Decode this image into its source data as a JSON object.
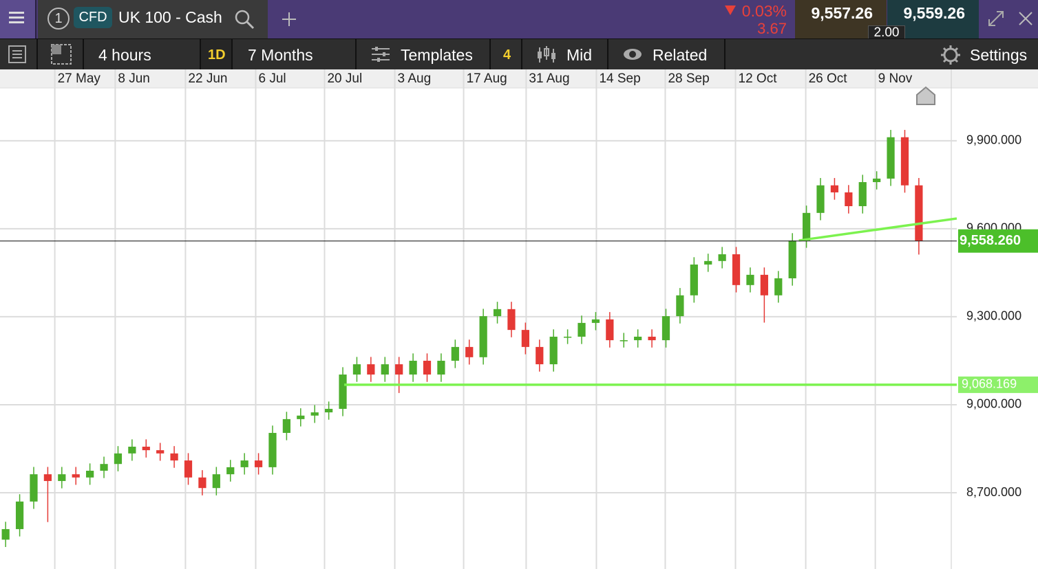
{
  "header": {
    "watchlist_number": "1",
    "instrument_type": "CFD",
    "instrument": "UK 100 - Cash",
    "change_percent": "0.03%",
    "change": "3.67",
    "sell_price": "9,557.26",
    "buy_price": "9,559.26",
    "spread": "2.00"
  },
  "toolbar": {
    "interval": "4 hours",
    "interval_short": "1D",
    "range": "7 Months",
    "templates": "Templates",
    "indicator_count": "4",
    "price_type": "Mid",
    "related": "Related",
    "settings": "Settings"
  },
  "chart_data": {
    "type": "candlestick",
    "open": [
      8540,
      8576,
      8670,
      8763,
      8740,
      8763,
      8752,
      8775,
      8798,
      8834,
      8857,
      8845,
      8834,
      8810,
      8752,
      8716,
      8763,
      8787,
      8810,
      8787,
      8904,
      8951,
      8963,
      8974,
      8986,
      9103,
      9138,
      9103,
      9138,
      9103,
      9150,
      9103,
      9150,
      9197,
      9162,
      9302,
      9326,
      9255,
      9197,
      9138,
      9232,
      9232,
      9279,
      9291,
      9220,
      9220,
      9232,
      9220,
      9302,
      9373,
      9478,
      9490,
      9513,
      9408,
      9443,
      9373,
      9431,
      9560,
      9654,
      9748,
      9724,
      9677,
      9759,
      9771,
      9912,
      9748
    ],
    "high": [
      8601,
      8695,
      8788,
      8788,
      8788,
      8788,
      8800,
      8823,
      8859,
      8882,
      8882,
      8870,
      8859,
      8835,
      8777,
      8788,
      8812,
      8835,
      8835,
      8929,
      8976,
      8988,
      8999,
      9011,
      9128,
      9163,
      9163,
      9163,
      9163,
      9175,
      9175,
      9175,
      9222,
      9222,
      9327,
      9351,
      9351,
      9280,
      9222,
      9257,
      9257,
      9304,
      9316,
      9316,
      9245,
      9257,
      9257,
      9327,
      9398,
      9503,
      9515,
      9538,
      9538,
      9468,
      9468,
      9456,
      9585,
      9679,
      9773,
      9773,
      9749,
      9784,
      9796,
      9937,
      9937,
      9773
    ],
    "low": [
      8515,
      8551,
      8645,
      8600,
      8715,
      8727,
      8727,
      8750,
      8773,
      8809,
      8820,
      8809,
      8785,
      8727,
      8691,
      8691,
      8738,
      8762,
      8762,
      8762,
      8879,
      8926,
      8938,
      8949,
      8961,
      9078,
      9078,
      9078,
      9040,
      9078,
      9078,
      9078,
      9125,
      9137,
      9137,
      9277,
      9230,
      9172,
      9113,
      9113,
      9207,
      9207,
      9254,
      9195,
      9195,
      9195,
      9195,
      9195,
      9277,
      9348,
      9453,
      9465,
      9383,
      9383,
      9280,
      9348,
      9406,
      9535,
      9629,
      9699,
      9652,
      9652,
      9734,
      9746,
      9723,
      9512
    ],
    "close": [
      8576,
      8670,
      8763,
      8740,
      8763,
      8752,
      8775,
      8798,
      8834,
      8857,
      8845,
      8834,
      8810,
      8752,
      8716,
      8763,
      8787,
      8810,
      8787,
      8904,
      8951,
      8963,
      8974,
      8986,
      9103,
      9138,
      9103,
      9138,
      9103,
      9150,
      9103,
      9150,
      9197,
      9162,
      9302,
      9326,
      9255,
      9197,
      9138,
      9232,
      9232,
      9279,
      9291,
      9220,
      9220,
      9232,
      9220,
      9302,
      9373,
      9478,
      9490,
      9513,
      9408,
      9443,
      9373,
      9431,
      9560,
      9654,
      9748,
      9724,
      9677,
      9759,
      9771,
      9912,
      9748,
      9558.26
    ],
    "up_color": "#4cae2c",
    "down_color": "#e53935",
    "xlim": [
      -0.4,
      67.7
    ],
    "xticks": [
      {
        "value": 3.5,
        "label": "27 May"
      },
      {
        "value": 7.8,
        "label": "8 Jun"
      },
      {
        "value": 12.8,
        "label": "22 Jun"
      },
      {
        "value": 17.8,
        "label": "6 Jul"
      },
      {
        "value": 22.7,
        "label": "20 Jul"
      },
      {
        "value": 27.7,
        "label": "3 Aug"
      },
      {
        "value": 32.6,
        "label": "17 Aug"
      },
      {
        "value": 37.05,
        "label": "31 Aug"
      },
      {
        "value": 42.05,
        "label": "14 Sep"
      },
      {
        "value": 46.95,
        "label": "28 Sep"
      },
      {
        "value": 51.95,
        "label": "12 Oct"
      },
      {
        "value": 56.95,
        "label": "26 Oct"
      },
      {
        "value": 61.9,
        "label": "9 Nov"
      }
    ],
    "ylim": [
      8440,
      10080
    ],
    "yticks": [
      {
        "value": 8700,
        "label": "8,700.000"
      },
      {
        "value": 9000,
        "label": "9,000.000"
      },
      {
        "value": 9300,
        "label": "9,300.000"
      },
      {
        "value": 9600,
        "label": "9,600.000"
      },
      {
        "value": 9900,
        "label": "9,900.000"
      }
    ],
    "grid": true,
    "last_price": {
      "value": 9558.26,
      "label": "9,558.260"
    },
    "trend_lines": [
      {
        "x": [
          24.1,
          67.7
        ],
        "y": [
          9068.169,
          9068.169
        ],
        "label": "9,068.169",
        "color": "#7cf24f"
      },
      {
        "x": [
          56.46,
          67.7
        ],
        "y": [
          9560,
          9635
        ],
        "color": "#7cf24f"
      }
    ]
  }
}
